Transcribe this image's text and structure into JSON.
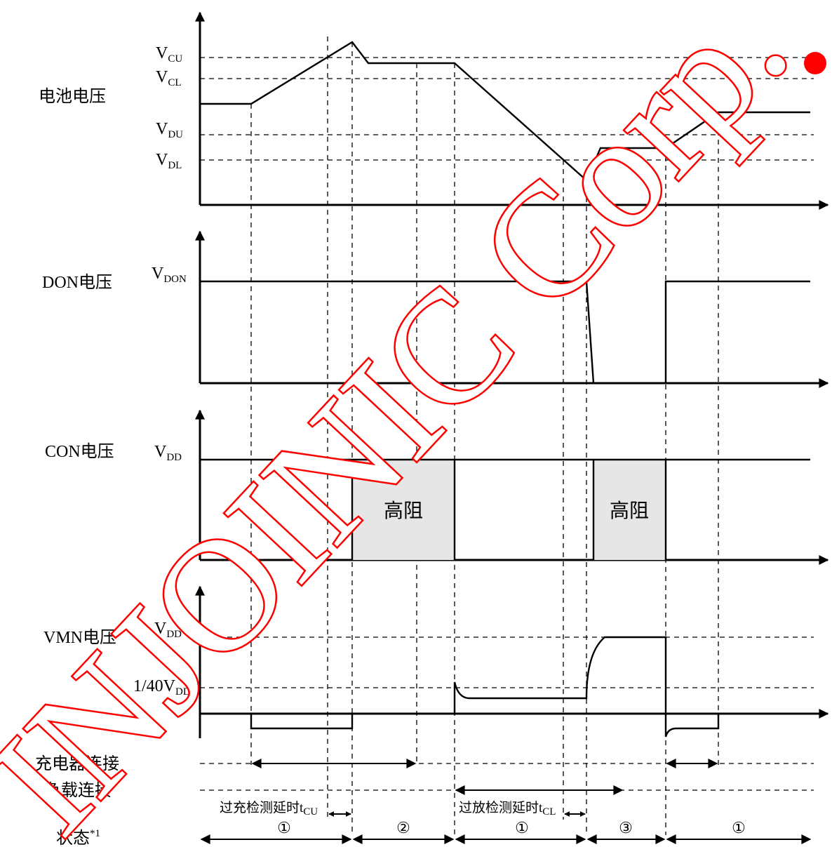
{
  "rows": {
    "battery": "电池电压",
    "don": "DON电压",
    "con": "CON电压",
    "vmn": "VMN电压",
    "charger": "充电器连接",
    "load": "负载连接",
    "state": "状态",
    "state_sup": "*1"
  },
  "levels": {
    "vcu": {
      "main": "V",
      "sub": "CU"
    },
    "vcl": {
      "main": "V",
      "sub": "CL"
    },
    "vdu": {
      "main": "V",
      "sub": "DU"
    },
    "vdl": {
      "main": "V",
      "sub": "DL"
    },
    "vdon": {
      "main": "V",
      "sub": "DON"
    },
    "vdd_con": {
      "main": "V",
      "sub": "DD"
    },
    "vdd_vmn": {
      "main": "V",
      "sub": "DD"
    },
    "vdd40": {
      "main": "1/40V",
      "sub": "DD"
    }
  },
  "regions": {
    "hiz1": "高阻",
    "hiz2": "高阻"
  },
  "delays": {
    "overcharge": {
      "main": "过充检测延时t",
      "sub": "CU"
    },
    "overdischarge": {
      "main": "过放检测延时t",
      "sub": "CL"
    }
  },
  "states": [
    "①",
    "②",
    "①",
    "③",
    "①"
  ],
  "watermark": "INJOINIC Corp."
}
